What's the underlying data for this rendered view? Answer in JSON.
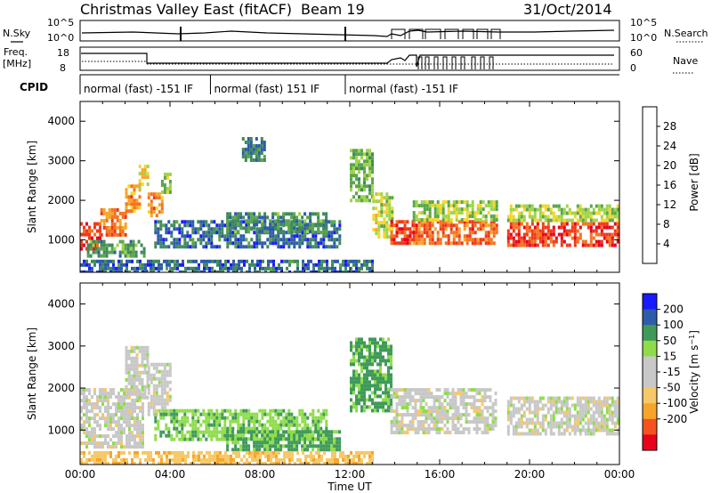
{
  "title": "Christmas Valley East (fitACF)",
  "beam_label": "Beam 19",
  "date": "31/Oct/2014",
  "header": {
    "nsky_label": "N.Sky",
    "nsearch_label": "N.Search",
    "freq_label_1": "Freq.",
    "freq_label_2": "[MHz]",
    "nave_label": "Nave",
    "cpid_label": "CPID",
    "noise_ticks": [
      "10^5",
      "10^0"
    ],
    "freq_left_ticks": [
      "18",
      "8"
    ],
    "freq_right_ticks": [
      "60",
      "0"
    ]
  },
  "cpid_segments": [
    {
      "start_hour": 0.0,
      "end_hour": 5.8,
      "label": "normal (fast) -151 IF"
    },
    {
      "start_hour": 5.8,
      "end_hour": 11.8,
      "label": "normal (fast) 151 IF"
    },
    {
      "start_hour": 11.8,
      "end_hour": 24.0,
      "label": "normal (fast) -151 IF"
    }
  ],
  "colors": {
    "power_scale": [
      "#1a1aff",
      "#2d5ca8",
      "#3f8a5a",
      "#5aa64b",
      "#9fd44a",
      "#f4d62a",
      "#f7a52a",
      "#f4731f",
      "#ee3a1c",
      "#e8001c"
    ],
    "velocity_scale": [
      "#e8001c",
      "#f4531f",
      "#f7a52a",
      "#f6c867",
      "#c8c8c8",
      "#c8c8c8",
      "#8fdc4b",
      "#3f9a5a",
      "#2f5ca8",
      "#1a1aff"
    ]
  },
  "chart_data": [
    {
      "type": "heatmap",
      "name": "power",
      "ylabel": "Slant Range [km]",
      "yticks": [
        1000,
        2000,
        3000,
        4000
      ],
      "ylim": [
        180,
        4500
      ],
      "xlim": [
        0,
        24
      ],
      "colorbar_label": "Power [dB]",
      "colorbar_ticks": [
        4,
        8,
        12,
        16,
        20,
        24,
        28
      ],
      "clim": [
        0,
        32
      ],
      "regions": [
        {
          "t0": 0.0,
          "t1": 0.9,
          "r0": 800,
          "r1": 1450,
          "value": 28
        },
        {
          "t0": 0.9,
          "t1": 2.0,
          "r0": 1100,
          "r1": 1800,
          "value": 24
        },
        {
          "t0": 2.0,
          "t1": 2.6,
          "r0": 1700,
          "r1": 2400,
          "value": 22
        },
        {
          "t0": 2.6,
          "t1": 3.0,
          "r0": 2300,
          "r1": 2900,
          "value": 18
        },
        {
          "t0": 0.3,
          "t1": 2.8,
          "r0": 600,
          "r1": 1000,
          "value": 10
        },
        {
          "t0": 3.0,
          "t1": 3.6,
          "r0": 1600,
          "r1": 2200,
          "value": 22
        },
        {
          "t0": 3.6,
          "t1": 4.0,
          "r0": 2200,
          "r1": 2700,
          "value": 14
        },
        {
          "t0": 3.3,
          "t1": 11.5,
          "r0": 800,
          "r1": 1500,
          "value": 6
        },
        {
          "t0": 6.5,
          "t1": 11.0,
          "r0": 1200,
          "r1": 1700,
          "value": 9
        },
        {
          "t0": 7.2,
          "t1": 8.2,
          "r0": 3000,
          "r1": 3600,
          "value": 7
        },
        {
          "t0": 12.0,
          "t1": 13.0,
          "r0": 2000,
          "r1": 3300,
          "value": 12
        },
        {
          "t0": 13.0,
          "t1": 13.9,
          "r0": 1100,
          "r1": 2200,
          "value": 16
        },
        {
          "t0": 13.8,
          "t1": 14.8,
          "r0": 900,
          "r1": 1500,
          "value": 27
        },
        {
          "t0": 14.8,
          "t1": 18.5,
          "r0": 900,
          "r1": 1500,
          "value": 25
        },
        {
          "t0": 14.8,
          "t1": 18.5,
          "r0": 1500,
          "r1": 2000,
          "value": 14
        },
        {
          "t0": 19.0,
          "t1": 24.0,
          "r0": 850,
          "r1": 1450,
          "value": 27
        },
        {
          "t0": 19.0,
          "t1": 24.0,
          "r0": 1450,
          "r1": 1900,
          "value": 15
        },
        {
          "t0": 0.0,
          "t1": 13.0,
          "r0": 200,
          "r1": 500,
          "value": 6
        }
      ]
    },
    {
      "type": "heatmap",
      "name": "velocity",
      "xlabel": "Time UT",
      "ylabel": "Slant Range [km]",
      "yticks": [
        1000,
        2000,
        3000,
        4000
      ],
      "ylim": [
        180,
        4500
      ],
      "xlim": [
        0,
        24
      ],
      "xticks": [
        "00:00",
        "04:00",
        "08:00",
        "12:00",
        "16:00",
        "20:00",
        "00:00"
      ],
      "colorbar_label": "Velocity [m s^-1]",
      "colorbar_ticks": [
        200,
        100,
        50,
        15,
        -15,
        -50,
        -100,
        -200
      ],
      "regions": [
        {
          "t0": 0.0,
          "t1": 2.8,
          "r0": 600,
          "r1": 2000,
          "value": 0
        },
        {
          "t0": 2.0,
          "t1": 3.0,
          "r0": 1800,
          "r1": 3000,
          "value": 0
        },
        {
          "t0": 3.0,
          "t1": 4.0,
          "r0": 1400,
          "r1": 2600,
          "value": 0
        },
        {
          "t0": 3.3,
          "t1": 11.0,
          "r0": 800,
          "r1": 1500,
          "value": 40
        },
        {
          "t0": 6.5,
          "t1": 11.5,
          "r0": 500,
          "r1": 1000,
          "value": 60
        },
        {
          "t0": 12.0,
          "t1": 13.9,
          "r0": 1500,
          "r1": 3200,
          "value": 60
        },
        {
          "t0": 13.8,
          "t1": 18.5,
          "r0": 900,
          "r1": 2000,
          "value": 0
        },
        {
          "t0": 19.0,
          "t1": 24.0,
          "r0": 900,
          "r1": 1800,
          "value": 0
        },
        {
          "t0": 0.0,
          "t1": 13.0,
          "r0": 200,
          "r1": 500,
          "value": -40
        }
      ]
    }
  ]
}
